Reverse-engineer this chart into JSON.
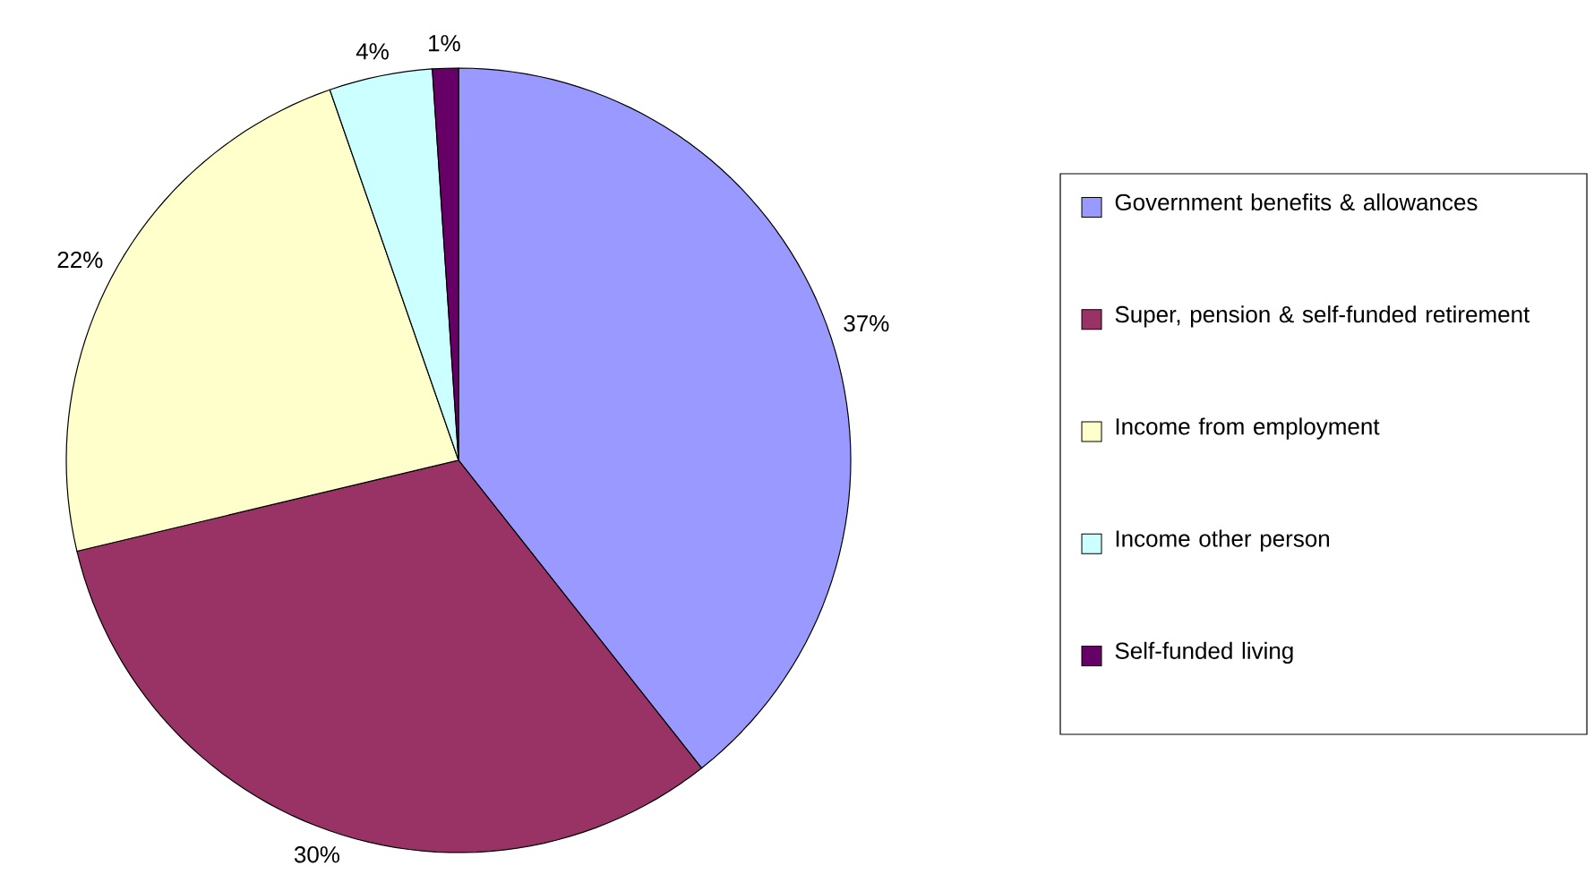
{
  "chart_data": {
    "type": "pie",
    "categories": [
      "Government benefits & allowances",
      "Super, pension & self-funded retirement",
      "Income from employment",
      "Income other person",
      "Self-funded living"
    ],
    "values": [
      37,
      30,
      22,
      4,
      1
    ],
    "colors": [
      "#9999ff",
      "#993366",
      "#ffffcc",
      "#ccffff",
      "#660066"
    ],
    "value_labels": [
      "37%",
      "30%",
      "22%",
      "4%",
      "1%"
    ],
    "legend": "right"
  }
}
